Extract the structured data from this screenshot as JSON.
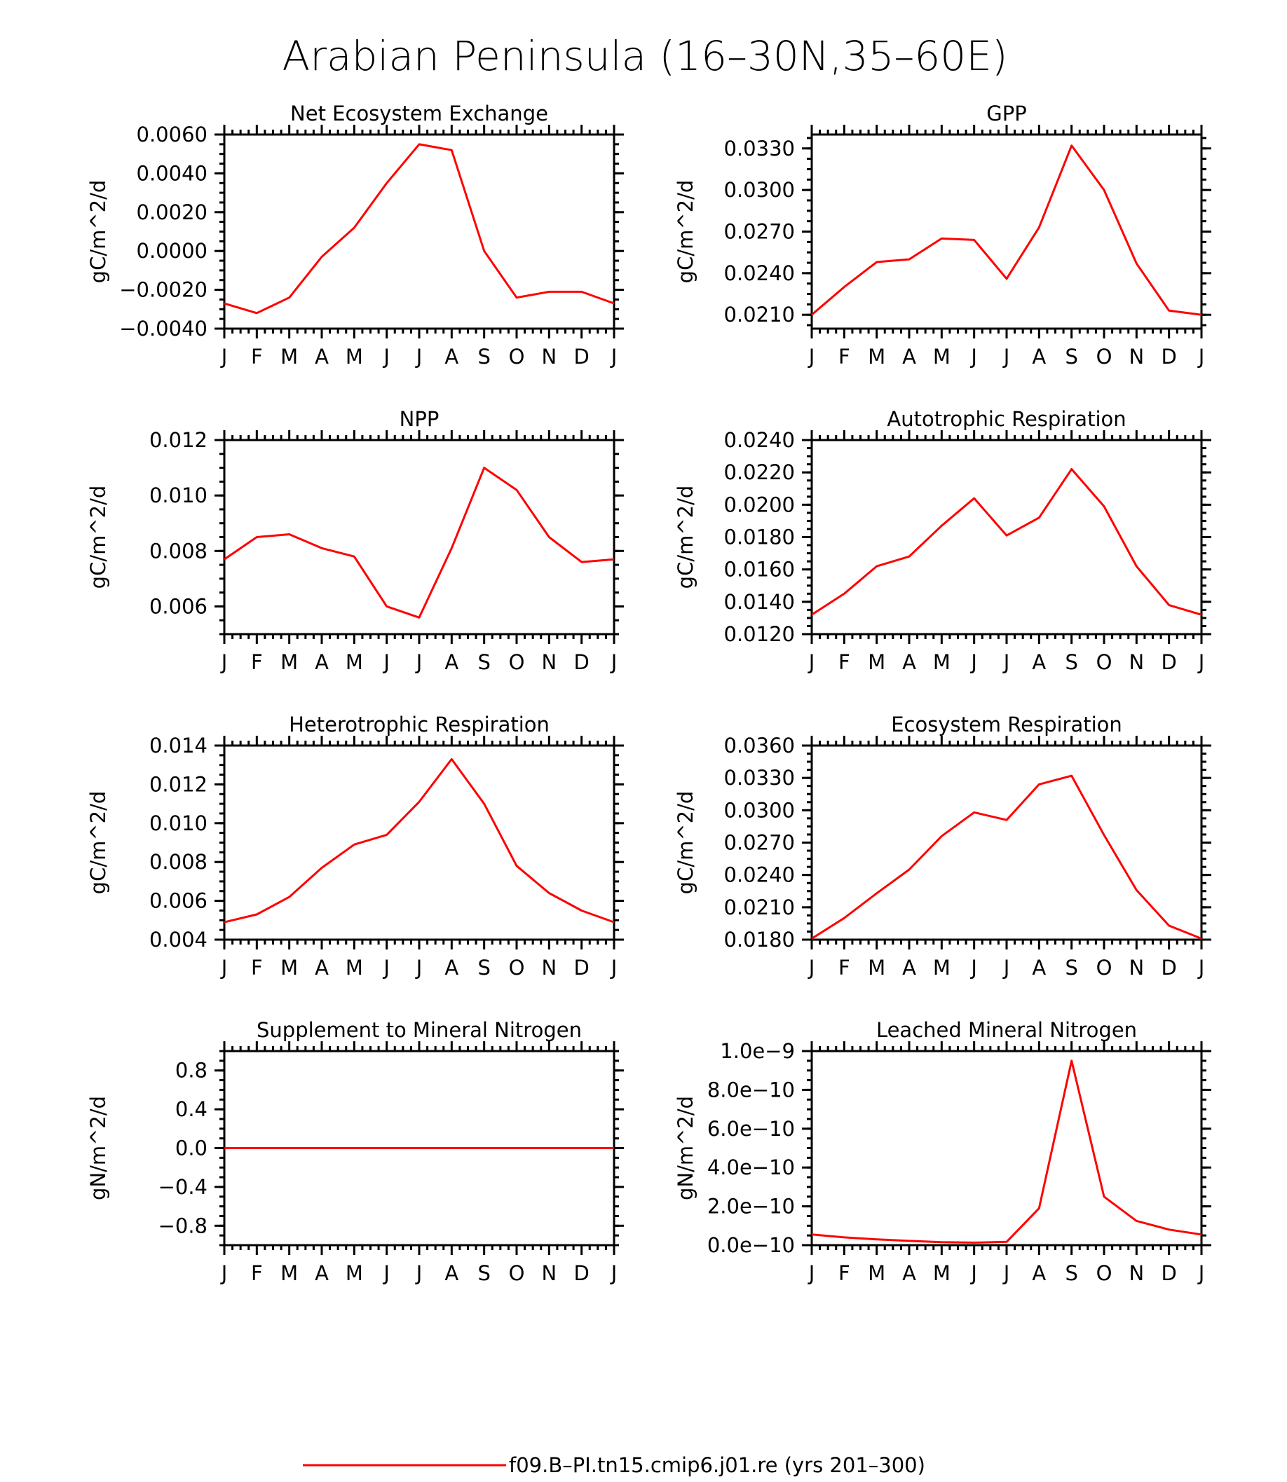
{
  "figure_title": "Arabian Peninsula (16–30N,35–60E)",
  "legend": {
    "label": "f09.B–PI.tn15.cmip6.j01.re (yrs 201–300)",
    "color": "#ff0000"
  },
  "chart_data": [
    {
      "type": "line",
      "title": "Net Ecosystem Exchange",
      "ylabel": "gC/m^2/d",
      "categories": [
        "J",
        "F",
        "M",
        "A",
        "M",
        "J",
        "J",
        "A",
        "S",
        "O",
        "N",
        "D",
        "J"
      ],
      "ylim": [
        -0.004,
        0.006
      ],
      "yticks": [
        -0.004,
        -0.002,
        0.0,
        0.002,
        0.004,
        0.006
      ],
      "ytick_labels": [
        "−0.0040",
        "−0.0020",
        "0.0000",
        "0.0020",
        "0.0040",
        "0.0060"
      ],
      "series": [
        {
          "values": [
            -0.0027,
            -0.0032,
            -0.0024,
            -0.0003,
            0.0012,
            0.0035,
            0.0055,
            0.0052,
            0.0,
            -0.0024,
            -0.0021,
            -0.0021,
            -0.0027
          ]
        }
      ]
    },
    {
      "type": "line",
      "title": "GPP",
      "ylabel": "gC/m^2/d",
      "categories": [
        "J",
        "F",
        "M",
        "A",
        "M",
        "J",
        "J",
        "A",
        "S",
        "O",
        "N",
        "D",
        "J"
      ],
      "ylim": [
        0.02,
        0.034
      ],
      "yticks": [
        0.021,
        0.024,
        0.027,
        0.03,
        0.033
      ],
      "ytick_labels": [
        "0.0210",
        "0.0240",
        "0.0270",
        "0.0300",
        "0.0330"
      ],
      "series": [
        {
          "values": [
            0.021,
            0.023,
            0.0248,
            0.025,
            0.0265,
            0.0264,
            0.0236,
            0.0273,
            0.0332,
            0.03,
            0.0247,
            0.0213,
            0.021
          ]
        }
      ]
    },
    {
      "type": "line",
      "title": "NPP",
      "ylabel": "gC/m^2/d",
      "categories": [
        "J",
        "F",
        "M",
        "A",
        "M",
        "J",
        "J",
        "A",
        "S",
        "O",
        "N",
        "D",
        "J"
      ],
      "ylim": [
        0.005,
        0.012
      ],
      "yticks": [
        0.006,
        0.008,
        0.01,
        0.012
      ],
      "ytick_labels": [
        "0.006",
        "0.008",
        "0.010",
        "0.012"
      ],
      "series": [
        {
          "values": [
            0.0077,
            0.0085,
            0.0086,
            0.0081,
            0.0078,
            0.006,
            0.0056,
            0.0081,
            0.011,
            0.0102,
            0.0085,
            0.0076,
            0.0077
          ]
        }
      ]
    },
    {
      "type": "line",
      "title": "Autotrophic Respiration",
      "ylabel": "gC/m^2/d",
      "categories": [
        "J",
        "F",
        "M",
        "A",
        "M",
        "J",
        "J",
        "A",
        "S",
        "O",
        "N",
        "D",
        "J"
      ],
      "ylim": [
        0.012,
        0.024
      ],
      "yticks": [
        0.012,
        0.014,
        0.016,
        0.018,
        0.02,
        0.022,
        0.024
      ],
      "ytick_labels": [
        "0.0120",
        "0.0140",
        "0.0160",
        "0.0180",
        "0.0200",
        "0.0220",
        "0.0240"
      ],
      "series": [
        {
          "values": [
            0.0132,
            0.0145,
            0.0162,
            0.0168,
            0.0187,
            0.0204,
            0.0181,
            0.0192,
            0.0222,
            0.0199,
            0.0162,
            0.0138,
            0.0132
          ]
        }
      ]
    },
    {
      "type": "line",
      "title": "Heterotrophic Respiration",
      "ylabel": "gC/m^2/d",
      "categories": [
        "J",
        "F",
        "M",
        "A",
        "M",
        "J",
        "J",
        "A",
        "S",
        "O",
        "N",
        "D",
        "J"
      ],
      "ylim": [
        0.004,
        0.014
      ],
      "yticks": [
        0.004,
        0.006,
        0.008,
        0.01,
        0.012,
        0.014
      ],
      "ytick_labels": [
        "0.004",
        "0.006",
        "0.008",
        "0.010",
        "0.012",
        "0.014"
      ],
      "series": [
        {
          "values": [
            0.0049,
            0.0053,
            0.0062,
            0.0077,
            0.0089,
            0.0094,
            0.0111,
            0.0133,
            0.011,
            0.0078,
            0.0064,
            0.0055,
            0.0049
          ]
        }
      ]
    },
    {
      "type": "line",
      "title": "Ecosystem Respiration",
      "ylabel": "gC/m^2/d",
      "categories": [
        "J",
        "F",
        "M",
        "A",
        "M",
        "J",
        "J",
        "A",
        "S",
        "O",
        "N",
        "D",
        "J"
      ],
      "ylim": [
        0.018,
        0.036
      ],
      "yticks": [
        0.018,
        0.021,
        0.024,
        0.027,
        0.03,
        0.033,
        0.036
      ],
      "ytick_labels": [
        "0.0180",
        "0.0210",
        "0.0240",
        "0.0270",
        "0.0300",
        "0.0330",
        "0.0360"
      ],
      "series": [
        {
          "values": [
            0.0181,
            0.02,
            0.0223,
            0.0245,
            0.0276,
            0.0298,
            0.0291,
            0.0324,
            0.0332,
            0.0277,
            0.0226,
            0.0193,
            0.0181
          ]
        }
      ]
    },
    {
      "type": "line",
      "title": "Supplement to Mineral Nitrogen",
      "ylabel": "gN/m^2/d",
      "categories": [
        "J",
        "F",
        "M",
        "A",
        "M",
        "J",
        "J",
        "A",
        "S",
        "O",
        "N",
        "D",
        "J"
      ],
      "ylim": [
        -1.0,
        1.0
      ],
      "yticks": [
        -0.8,
        -0.4,
        0.0,
        0.4,
        0.8
      ],
      "ytick_labels": [
        "−0.8",
        "−0.4",
        "0.0",
        "0.4",
        "0.8"
      ],
      "series": [
        {
          "values": [
            0,
            0,
            0,
            0,
            0,
            0,
            0,
            0,
            0,
            0,
            0,
            0,
            0
          ]
        }
      ]
    },
    {
      "type": "line",
      "title": "Leached Mineral Nitrogen",
      "ylabel": "gN/m^2/d",
      "categories": [
        "J",
        "F",
        "M",
        "A",
        "M",
        "J",
        "J",
        "A",
        "S",
        "O",
        "N",
        "D",
        "J"
      ],
      "ylim": [
        0.0,
        1e-09
      ],
      "yticks": [
        0.0,
        2e-10,
        4e-10,
        6e-10,
        8e-10,
        1e-09
      ],
      "ytick_labels": [
        "0.0e−10",
        "2.0e−10",
        "4.0e−10",
        "6.0e−10",
        "8.0e−10",
        "1.0e−9"
      ],
      "series": [
        {
          "values": [
            5.5e-11,
            4e-11,
            3e-11,
            2.2e-11,
            1.5e-11,
            1.3e-11,
            1.7e-11,
            1.9e-10,
            9.5e-10,
            2.5e-10,
            1.25e-10,
            8e-11,
            5.5e-11
          ]
        }
      ]
    }
  ]
}
